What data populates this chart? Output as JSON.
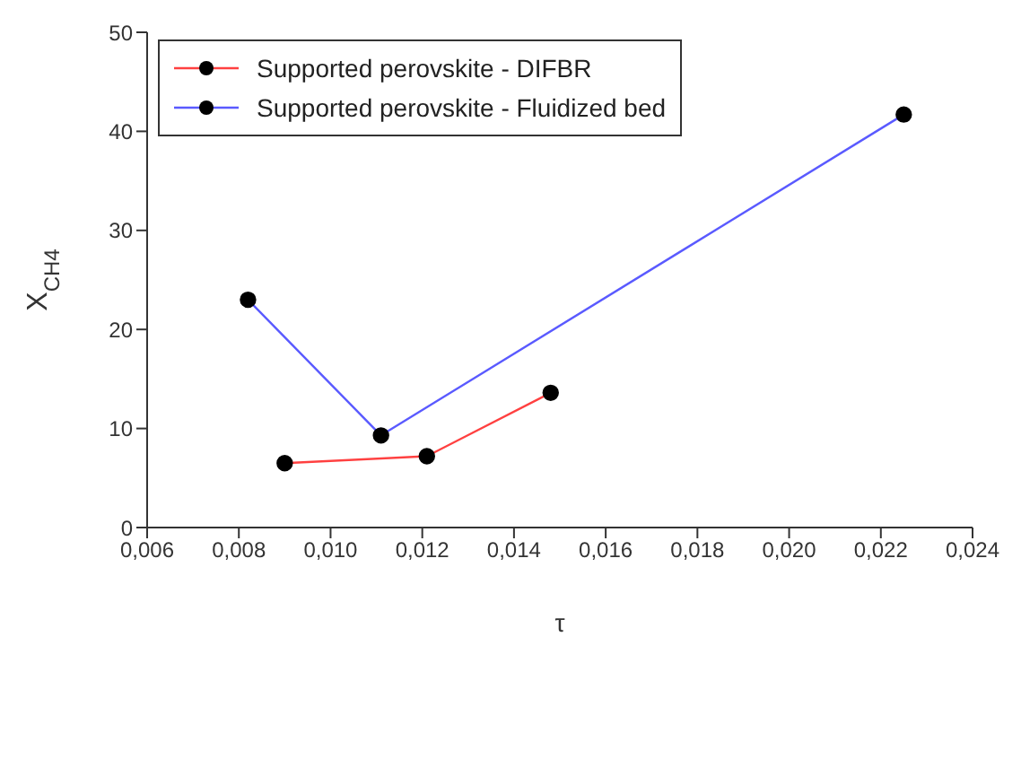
{
  "chart_data": {
    "type": "line",
    "xlabel": "τ",
    "ylabel": "X$_{CH4}$",
    "xlim": [
      0.006,
      0.024
    ],
    "xticks": [
      {
        "value": 0.006,
        "label": "0,006"
      },
      {
        "value": 0.008,
        "label": "0,008"
      },
      {
        "value": 0.01,
        "label": "0,010"
      },
      {
        "value": 0.012,
        "label": "0,012"
      },
      {
        "value": 0.014,
        "label": "0,014"
      },
      {
        "value": 0.016,
        "label": "0,016"
      },
      {
        "value": 0.018,
        "label": "0,018"
      },
      {
        "value": 0.02,
        "label": "0,020"
      },
      {
        "value": 0.022,
        "label": "0,022"
      },
      {
        "value": 0.024,
        "label": "0,024"
      }
    ],
    "ylim": [
      0,
      50
    ],
    "yticks": [
      0,
      10,
      20,
      30,
      40,
      50
    ],
    "series": [
      {
        "name": "Supported perovskite - DIFBR",
        "color": "#ff4040",
        "x": [
          0.009,
          0.0121,
          0.0148
        ],
        "values": [
          6.5,
          7.2,
          13.6
        ]
      },
      {
        "name": "Supported perovskite - Fluidized bed",
        "color": "#5a5aff",
        "x": [
          0.0082,
          0.0111,
          0.0225
        ],
        "values": [
          23,
          9.3,
          41.7
        ]
      }
    ],
    "marker": "circle",
    "legend": "top left",
    "grid": false
  }
}
